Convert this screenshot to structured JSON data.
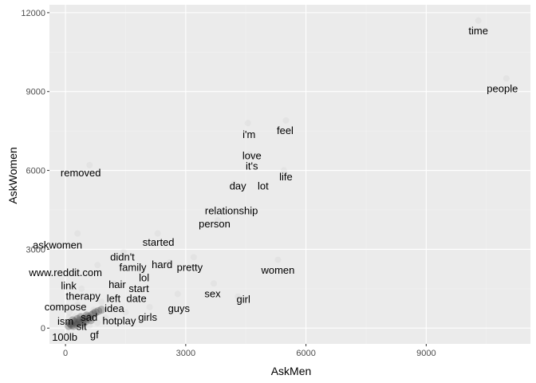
{
  "chart_data": {
    "type": "scatter",
    "xlabel": "AskMen",
    "ylabel": "AskWomen",
    "xlim": [
      -400,
      11600
    ],
    "ylim": [
      -600,
      12300
    ],
    "x_ticks": [
      0,
      3000,
      6000,
      9000
    ],
    "y_ticks": [
      0,
      3000,
      6000,
      9000,
      12000
    ],
    "x_tick_labels": [
      "0",
      "3000",
      "6000",
      "9000"
    ],
    "y_tick_labels": [
      "0",
      "3000",
      "6000",
      "9000",
      "12000"
    ],
    "grid": true,
    "colors": {
      "panel": "#ebebeb",
      "grid_major": "#ffffff",
      "grid_minor": "#f2f2f2",
      "point": "#4d4d4d",
      "text": "#000000",
      "tick_text": "#4d4d4d"
    },
    "labels": [
      {
        "word": "time",
        "x": 10300,
        "y": 11300
      },
      {
        "word": "people",
        "x": 10900,
        "y": 9100
      },
      {
        "word": "feel",
        "x": 5480,
        "y": 7500
      },
      {
        "word": "i'm",
        "x": 4580,
        "y": 7350
      },
      {
        "word": "love",
        "x": 4650,
        "y": 6550
      },
      {
        "word": "it's",
        "x": 4650,
        "y": 6150
      },
      {
        "word": "life",
        "x": 5500,
        "y": 5750
      },
      {
        "word": "removed",
        "x": 380,
        "y": 5900
      },
      {
        "word": "day",
        "x": 4300,
        "y": 5400
      },
      {
        "word": "lot",
        "x": 4930,
        "y": 5400
      },
      {
        "word": "relationship",
        "x": 4140,
        "y": 4450
      },
      {
        "word": "person",
        "x": 3720,
        "y": 3950
      },
      {
        "word": "started",
        "x": 2320,
        "y": 3250
      },
      {
        "word": "askwomen",
        "x": -200,
        "y": 3150
      },
      {
        "word": "didn't",
        "x": 1420,
        "y": 2700
      },
      {
        "word": "hard",
        "x": 2410,
        "y": 2400
      },
      {
        "word": "family",
        "x": 1680,
        "y": 2300
      },
      {
        "word": "pretty",
        "x": 3100,
        "y": 2300
      },
      {
        "word": "women",
        "x": 5300,
        "y": 2200
      },
      {
        "word": "www.reddit.com",
        "x": 0,
        "y": 2100
      },
      {
        "word": "lol",
        "x": 1960,
        "y": 1900
      },
      {
        "word": "link",
        "x": 80,
        "y": 1600
      },
      {
        "word": "hair",
        "x": 1290,
        "y": 1650
      },
      {
        "word": "start",
        "x": 1830,
        "y": 1500
      },
      {
        "word": "sex",
        "x": 3670,
        "y": 1300
      },
      {
        "word": "therapy",
        "x": 440,
        "y": 1200
      },
      {
        "word": "left",
        "x": 1200,
        "y": 1120
      },
      {
        "word": "date",
        "x": 1770,
        "y": 1120
      },
      {
        "word": "girl",
        "x": 4440,
        "y": 1080
      },
      {
        "word": "compose",
        "x": 0,
        "y": 800
      },
      {
        "word": "idea",
        "x": 1220,
        "y": 740
      },
      {
        "word": "guys",
        "x": 2830,
        "y": 740
      },
      {
        "word": "sad",
        "x": 590,
        "y": 400
      },
      {
        "word": "girls",
        "x": 2050,
        "y": 400
      },
      {
        "word": "hotplay",
        "x": 1340,
        "y": 270
      },
      {
        "word": "ism",
        "x": 0,
        "y": 250
      },
      {
        "word": "sit",
        "x": 400,
        "y": 50
      },
      {
        "word": "gf",
        "x": 720,
        "y": -270
      },
      {
        "word": "100lb",
        "x": -20,
        "y": -350
      }
    ],
    "points": [
      {
        "x": 10300,
        "y": 11700
      },
      {
        "x": 11000,
        "y": 9500
      },
      {
        "x": 5500,
        "y": 7900
      },
      {
        "x": 4550,
        "y": 7800
      },
      {
        "x": 4600,
        "y": 6600
      },
      {
        "x": 5450,
        "y": 6000
      },
      {
        "x": 600,
        "y": 6200
      },
      {
        "x": 4200,
        "y": 5500
      },
      {
        "x": 3800,
        "y": 4100
      },
      {
        "x": 2300,
        "y": 3600
      },
      {
        "x": 300,
        "y": 3600
      },
      {
        "x": 1450,
        "y": 2900
      },
      {
        "x": 3200,
        "y": 2700
      },
      {
        "x": 5300,
        "y": 2600
      },
      {
        "x": 2600,
        "y": 2500
      },
      {
        "x": 800,
        "y": 2400
      },
      {
        "x": 1900,
        "y": 2100
      },
      {
        "x": 3700,
        "y": 1700
      },
      {
        "x": 1200,
        "y": 1700
      },
      {
        "x": 2800,
        "y": 1300
      },
      {
        "x": 400,
        "y": 1500
      },
      {
        "x": 4300,
        "y": 1200
      },
      {
        "x": 2100,
        "y": 800
      },
      {
        "x": 900,
        "y": 1000
      },
      {
        "x": 1500,
        "y": 600
      },
      {
        "x": 700,
        "y": 700
      },
      {
        "x": 300,
        "y": 900
      },
      {
        "x": 1000,
        "y": 400
      },
      {
        "x": 500,
        "y": 500
      },
      {
        "x": 200,
        "y": 300
      },
      {
        "x": 800,
        "y": 200
      },
      {
        "x": 100,
        "y": 600
      },
      {
        "x": 600,
        "y": 100
      },
      {
        "x": 300,
        "y": 150
      },
      {
        "x": 150,
        "y": 50
      },
      {
        "x": 50,
        "y": 200
      },
      {
        "x": 400,
        "y": 350
      },
      {
        "x": 250,
        "y": 450
      },
      {
        "x": 700,
        "y": 350
      },
      {
        "x": 120,
        "y": 120
      },
      {
        "x": 60,
        "y": 60
      },
      {
        "x": 350,
        "y": 250
      },
      {
        "x": 200,
        "y": 100
      },
      {
        "x": 80,
        "y": 400
      },
      {
        "x": 450,
        "y": 50
      }
    ],
    "cluster_density": [
      {
        "x": 150,
        "y": 120
      },
      {
        "x": 250,
        "y": 200
      },
      {
        "x": 350,
        "y": 280
      },
      {
        "x": 450,
        "y": 350
      },
      {
        "x": 550,
        "y": 420
      },
      {
        "x": 650,
        "y": 500
      },
      {
        "x": 100,
        "y": 200
      },
      {
        "x": 200,
        "y": 80
      },
      {
        "x": 300,
        "y": 350
      },
      {
        "x": 400,
        "y": 150
      },
      {
        "x": 500,
        "y": 250
      },
      {
        "x": 80,
        "y": 80
      },
      {
        "x": 180,
        "y": 300
      },
      {
        "x": 280,
        "y": 130
      },
      {
        "x": 380,
        "y": 420
      },
      {
        "x": 480,
        "y": 300
      },
      {
        "x": 600,
        "y": 380
      },
      {
        "x": 700,
        "y": 550
      },
      {
        "x": 230,
        "y": 250
      },
      {
        "x": 330,
        "y": 200
      },
      {
        "x": 130,
        "y": 170
      },
      {
        "x": 430,
        "y": 230
      },
      {
        "x": 530,
        "y": 480
      },
      {
        "x": 630,
        "y": 300
      },
      {
        "x": 750,
        "y": 600
      },
      {
        "x": 820,
        "y": 650
      },
      {
        "x": 900,
        "y": 700
      }
    ]
  }
}
